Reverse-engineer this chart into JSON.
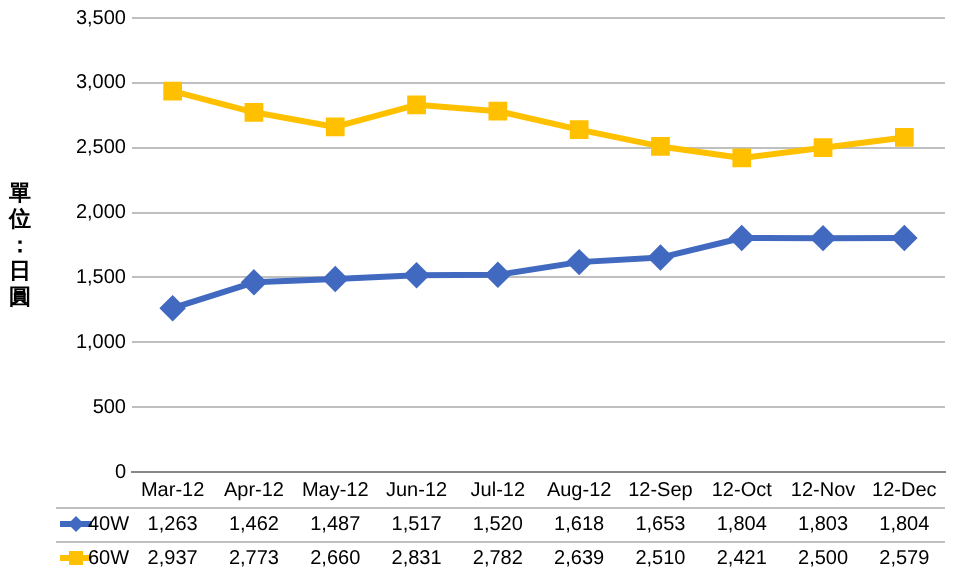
{
  "chart_data": {
    "type": "line",
    "ylabel": "單位：日圓",
    "categories": [
      "Mar-12",
      "Apr-12",
      "May-12",
      "Jun-12",
      "Jul-12",
      "Aug-12",
      "12-Sep",
      "12-Oct",
      "12-Nov",
      "12-Dec"
    ],
    "series": [
      {
        "name": "40W",
        "color": "#4169c0",
        "marker": "diamond",
        "values": [
          1263,
          1462,
          1487,
          1517,
          1520,
          1618,
          1653,
          1804,
          1803,
          1804
        ],
        "value_labels": [
          "1,263",
          "1,462",
          "1,487",
          "1,517",
          "1,520",
          "1,618",
          "1,653",
          "1,804",
          "1,803",
          "1,804"
        ]
      },
      {
        "name": "60W",
        "color": "#ffc000",
        "marker": "square",
        "values": [
          2937,
          2773,
          2660,
          2831,
          2782,
          2639,
          2510,
          2421,
          2500,
          2579
        ],
        "value_labels": [
          "2,937",
          "2,773",
          "2,660",
          "2,831",
          "2,782",
          "2,639",
          "2,510",
          "2,421",
          "2,500",
          "2,579"
        ]
      }
    ],
    "ylim": [
      0,
      3500
    ],
    "yticks": [
      0,
      500,
      {
        "value": 1000,
        "label": "1,000"
      },
      {
        "value": 1500,
        "label": "1,500"
      },
      {
        "value": 2000,
        "label": "2,000"
      },
      {
        "value": 2500,
        "label": "2,500"
      },
      {
        "value": 3000,
        "label": "3,000"
      },
      {
        "value": 3500,
        "label": "3,500"
      }
    ],
    "grid": "y",
    "legend": "bottom",
    "line_style": "solid"
  }
}
